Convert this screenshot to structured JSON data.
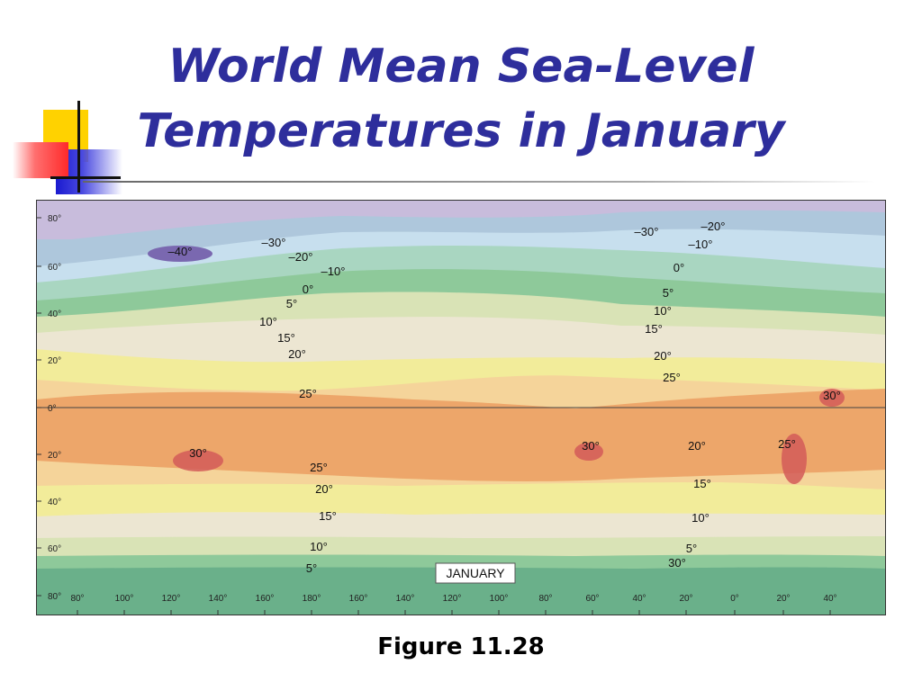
{
  "slide": {
    "title_line1": "World Mean Sea-Level",
    "title_line2": "Temperatures in January",
    "caption": "Figure 11.28"
  },
  "map": {
    "label": "JANUARY",
    "latitude_ticks": [
      "80°",
      "60°",
      "40°",
      "20°",
      "0°",
      "20°",
      "40°",
      "60°",
      "80°"
    ],
    "longitude_ticks": [
      "80°",
      "100°",
      "120°",
      "140°",
      "160°",
      "180°",
      "160°",
      "140°",
      "120°",
      "100°",
      "80°",
      "60°",
      "40°",
      "20°",
      "0°",
      "20°",
      "40°"
    ],
    "isotherm_labels": [
      "–40°",
      "–30°",
      "–20°",
      "–10°",
      "0°",
      "5°",
      "10°",
      "15°",
      "20°",
      "25°",
      "30°",
      "25°",
      "20°",
      "15°",
      "10°",
      "5°",
      "–30°",
      "–20°",
      "–10°",
      "0°",
      "5°",
      "10°",
      "15°",
      "20°",
      "25°",
      "30°",
      "30°",
      "25°",
      "20°",
      "15°",
      "10°",
      "5°",
      "30°"
    ],
    "colors": {
      "band_m40": "#7a68b0",
      "band_m30": "#c8bcdc",
      "band_m20": "#aec7dc",
      "band_m10": "#c7dfee",
      "band_0": "#a9d6c1",
      "band_5": "#8ec99a",
      "band_10": "#d9e3b6",
      "band_15": "#ece6d2",
      "band_20": "#f2ec9a",
      "band_25": "#f5d49a",
      "band_30": "#eda66a",
      "hot_30": "#d25a58",
      "south_green": "#6ab08a"
    }
  }
}
